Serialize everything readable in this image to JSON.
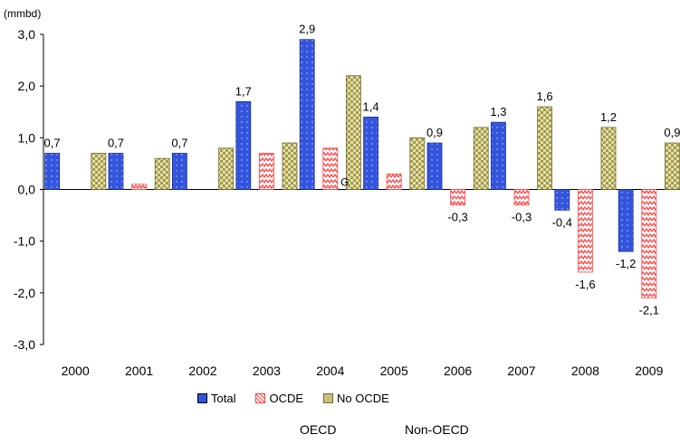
{
  "chart_data": {
    "type": "bar",
    "unit_label": "(mmbd)",
    "categories": [
      "2000",
      "2001",
      "2002",
      "2003",
      "2004",
      "2005",
      "2006",
      "2007",
      "2008",
      "2009"
    ],
    "series": [
      {
        "name": "Total",
        "values": [
          0.7,
          0.7,
          0.7,
          1.7,
          2.9,
          1.4,
          0.9,
          1.3,
          -0.4,
          -1.2
        ],
        "labels": [
          "0,7",
          "0,7",
          "0,7",
          "1,7",
          "2,9",
          "1,4",
          "0,9",
          "1,3",
          "-0,4",
          "-1,2"
        ],
        "color": "#3355dd"
      },
      {
        "name": "OCDE",
        "values": [
          0.0,
          0.1,
          0.0,
          0.7,
          0.8,
          0.3,
          -0.3,
          -0.3,
          -1.6,
          -2.1
        ],
        "labels": [
          "",
          "",
          "",
          "",
          "",
          "",
          "-0,3",
          "-0,3",
          "-1,6",
          "-2,1"
        ],
        "color": "#ff4444"
      },
      {
        "name": "No OCDE",
        "values": [
          0.7,
          0.6,
          0.8,
          0.9,
          2.2,
          1.0,
          1.2,
          1.6,
          1.2,
          0.9
        ],
        "labels": [
          "",
          "",
          "",
          "",
          "",
          "",
          "",
          "1,6",
          "1,2",
          "0,9"
        ],
        "color": "#c8c080"
      }
    ],
    "ylim": [
      -3.0,
      3.0
    ],
    "yticks": [
      3.0,
      2.0,
      1.0,
      0.0,
      -1.0,
      -2.0,
      -3.0
    ],
    "ytick_labels": [
      "3,0",
      "2,0",
      "1,0",
      "0,0",
      "-1,0",
      "-2,0",
      "-3,0"
    ],
    "annotation": "G",
    "legend_position": "bottom"
  },
  "footnotes": {
    "left": "OECD",
    "right": "Non-OECD"
  }
}
